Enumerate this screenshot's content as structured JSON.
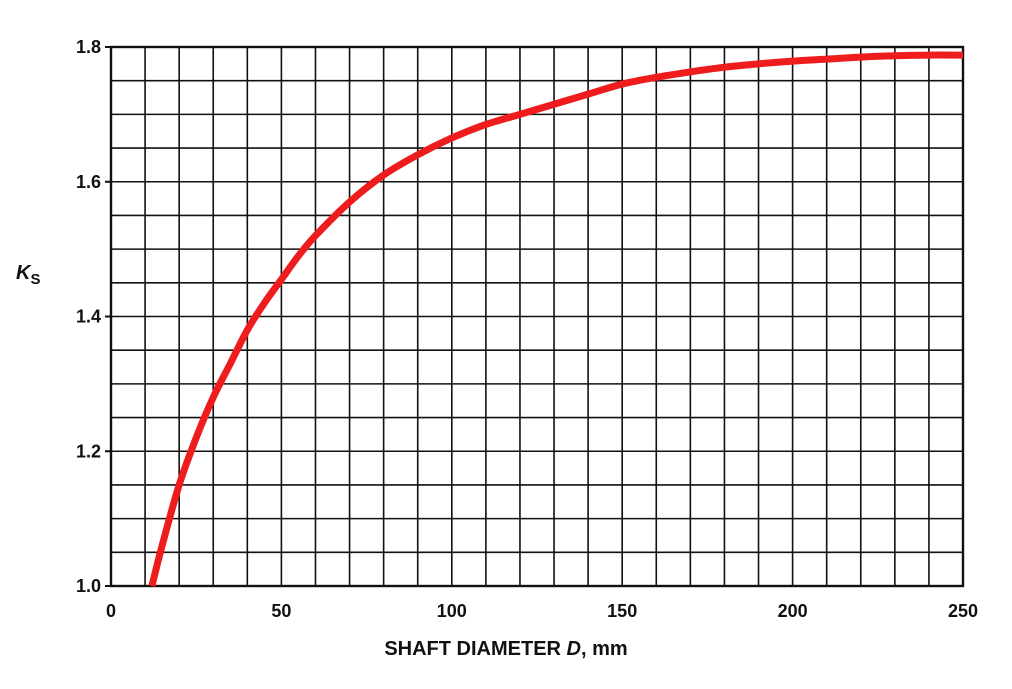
{
  "chart_data": {
    "type": "line",
    "title": "",
    "xlabel_parts": {
      "prefix": "SHAFT DIAMETER ",
      "variable": "D",
      "suffix": ", mm"
    },
    "ylabel_parts": {
      "symbol": "K",
      "subscript": "S"
    },
    "xlim": [
      0,
      250
    ],
    "ylim": [
      1.0,
      1.8
    ],
    "x_ticks": [
      0,
      50,
      100,
      150,
      200,
      250
    ],
    "x_tick_labels": [
      "0",
      "50",
      "100",
      "150",
      "200",
      "250"
    ],
    "y_ticks": [
      1.0,
      1.2,
      1.4,
      1.6,
      1.8
    ],
    "y_tick_labels": [
      "1.0",
      "1.2",
      "1.4",
      "1.6",
      "1.8"
    ],
    "grid": true,
    "grid_x_step": 10,
    "grid_y_step": 0.05,
    "series": [
      {
        "color": "#ee1c1c",
        "x": [
          12,
          15,
          20,
          25,
          30,
          35,
          40,
          45,
          50,
          55,
          60,
          70,
          80,
          90,
          100,
          110,
          120,
          130,
          140,
          150,
          160,
          170,
          180,
          190,
          200,
          210,
          220,
          230,
          240,
          250
        ],
        "y": [
          1.0,
          1.06,
          1.15,
          1.22,
          1.28,
          1.33,
          1.38,
          1.42,
          1.455,
          1.49,
          1.52,
          1.57,
          1.61,
          1.64,
          1.665,
          1.685,
          1.7,
          1.715,
          1.73,
          1.745,
          1.755,
          1.763,
          1.77,
          1.775,
          1.779,
          1.782,
          1.785,
          1.787,
          1.788,
          1.788
        ]
      }
    ]
  },
  "colors": {
    "grid": "#111111",
    "axis": "#111111",
    "curve": "#ee1c1c"
  }
}
